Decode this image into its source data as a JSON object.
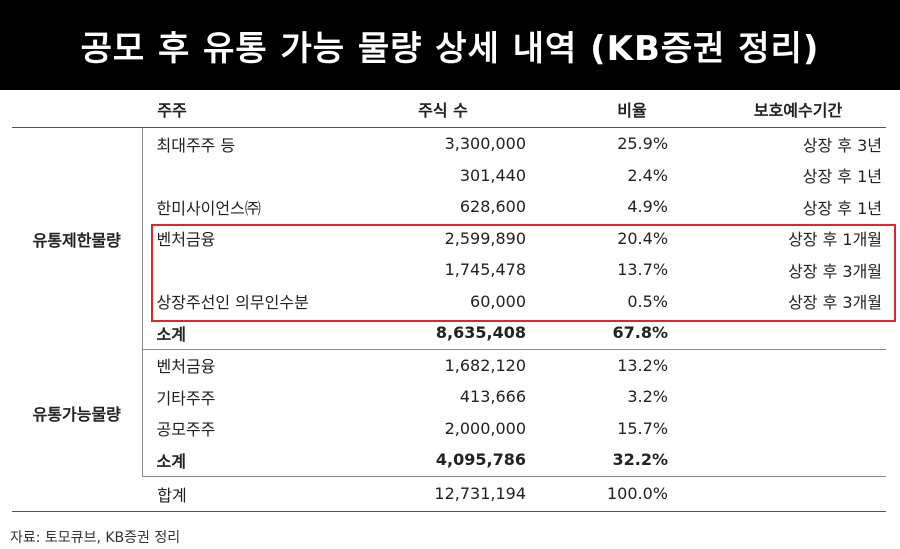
{
  "title": "공모 후 유통 가능 물량 상세 내역 (KB증권 정리)",
  "columns": [
    "주주",
    "주식 수",
    "비율",
    "보호예수기간"
  ],
  "groups": {
    "restricted": {
      "label": "유통제한물량",
      "rows": [
        {
          "name": "최대주주 등",
          "shares": "3,300,000",
          "ratio": "25.9%",
          "lockup": "상장 후 3년"
        },
        {
          "name": "",
          "shares": "301,440",
          "ratio": "2.4%",
          "lockup": "상장 후 1년"
        },
        {
          "name": "한미사이언스㈜",
          "shares": "628,600",
          "ratio": "4.9%",
          "lockup": "상장 후 1년"
        },
        {
          "name": "벤처금융",
          "shares": "2,599,890",
          "ratio": "20.4%",
          "lockup": "상장 후 1개월"
        },
        {
          "name": "",
          "shares": "1,745,478",
          "ratio": "13.7%",
          "lockup": "상장 후 3개월"
        },
        {
          "name": "상장주선인 의무인수분",
          "shares": "60,000",
          "ratio": "0.5%",
          "lockup": "상장 후 3개월"
        }
      ],
      "subtotal": {
        "name": "소계",
        "shares": "8,635,408",
        "ratio": "67.8%"
      }
    },
    "tradable": {
      "label": "유통가능물량",
      "rows": [
        {
          "name": "벤처금융",
          "shares": "1,682,120",
          "ratio": "13.2%"
        },
        {
          "name": "기타주주",
          "shares": "413,666",
          "ratio": "3.2%"
        },
        {
          "name": "공모주주",
          "shares": "2,000,000",
          "ratio": "15.7%"
        }
      ],
      "subtotal": {
        "name": "소계",
        "shares": "4,095,786",
        "ratio": "32.2%"
      }
    }
  },
  "total": {
    "label": "합계",
    "shares": "12,731,194",
    "ratio": "100.0%"
  },
  "source": "자료: 토모큐브, KB증권 정리",
  "colors": {
    "banner_bg": "#000000",
    "highlight": "#e0262d"
  }
}
